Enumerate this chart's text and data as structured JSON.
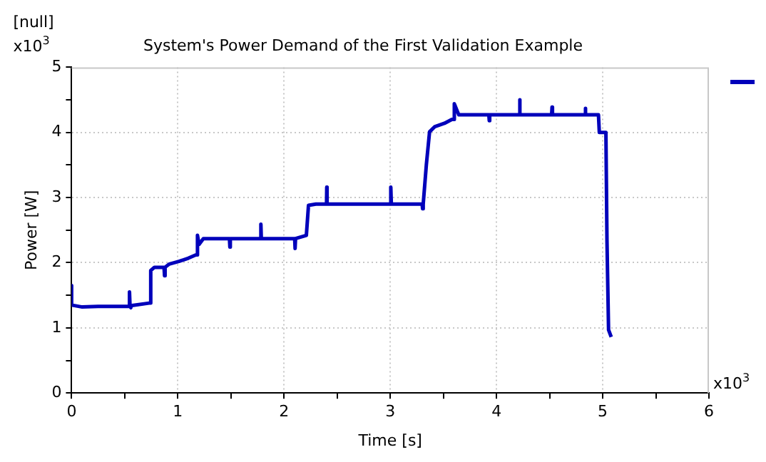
{
  "chart_data": {
    "type": "line",
    "title": "System's Power Demand of the First Validation Example",
    "xlabel": "Time [s]",
    "ylabel": "Power [W]",
    "annotations": [
      "[null]",
      "x10$^{3}$",
      "x10$^{3}$"
    ],
    "series": [
      {
        "color": "#0000bb",
        "x": [
          0,
          0,
          0,
          0.1,
          0.25,
          0.54,
          0.545,
          0.55,
          0.555,
          0.56,
          0.73,
          0.736,
          0.745,
          0.78,
          0.87,
          0.875,
          0.88,
          0.92,
          1.01,
          1.1,
          1.17,
          1.18,
          1.185,
          1.2,
          1.24,
          1.486,
          1.49,
          1.494,
          1.778,
          1.782,
          1.786,
          2.086,
          2.1,
          2.104,
          2.108,
          2.21,
          2.23,
          2.3,
          2.4,
          2.402,
          2.405,
          3.0,
          3.005,
          3.01,
          3.3,
          3.304,
          3.31,
          3.34,
          3.37,
          3.42,
          3.51,
          3.58,
          3.6,
          3.603,
          3.645,
          3.928,
          3.932,
          3.936,
          4.214,
          4.218,
          4.222,
          4.519,
          4.523,
          4.527,
          4.832,
          4.836,
          4.84,
          4.96,
          4.968,
          5.03,
          5.04,
          5.055,
          5.08
        ],
        "values": [
          1.65,
          1.35,
          1.35,
          1.32,
          1.33,
          1.33,
          1.55,
          1.33,
          1.31,
          1.34,
          1.38,
          1.38,
          1.88,
          1.93,
          1.93,
          1.8,
          1.93,
          1.98,
          2.02,
          2.07,
          2.12,
          2.12,
          2.42,
          2.28,
          2.37,
          2.37,
          2.24,
          2.37,
          2.37,
          2.59,
          2.37,
          2.37,
          2.37,
          2.22,
          2.37,
          2.42,
          2.88,
          2.9,
          2.9,
          3.16,
          2.9,
          2.9,
          3.16,
          2.9,
          2.9,
          2.83,
          2.9,
          3.51,
          4.01,
          4.09,
          4.14,
          4.2,
          4.2,
          4.44,
          4.27,
          4.27,
          4.18,
          4.27,
          4.27,
          4.5,
          4.27,
          4.27,
          4.39,
          4.27,
          4.27,
          4.37,
          4.27,
          4.27,
          4.0,
          4.0,
          2.35,
          0.97,
          0.86
        ]
      }
    ],
    "xlim": [
      0,
      6
    ],
    "ylim": [
      0,
      5
    ],
    "xticks": [
      0,
      {
        "value": 0.5,
        "label": null
      },
      1,
      {
        "value": 1.5,
        "label": null
      },
      2,
      {
        "value": 2.5,
        "label": null
      },
      3,
      {
        "value": 3.5,
        "label": null
      },
      4,
      {
        "value": 4.5,
        "label": null
      },
      5,
      {
        "value": 5.5,
        "label": null
      },
      6
    ],
    "yticks": [
      0,
      {
        "value": 0.5,
        "label": null
      },
      1,
      {
        "value": 1.5,
        "label": null
      },
      2,
      {
        "value": 2.5,
        "label": null
      },
      3,
      {
        "value": 3.5,
        "label": null
      },
      4,
      {
        "value": 4.5,
        "label": null
      },
      5
    ],
    "grid": true,
    "line_style": "solid",
    "marker": "none"
  }
}
